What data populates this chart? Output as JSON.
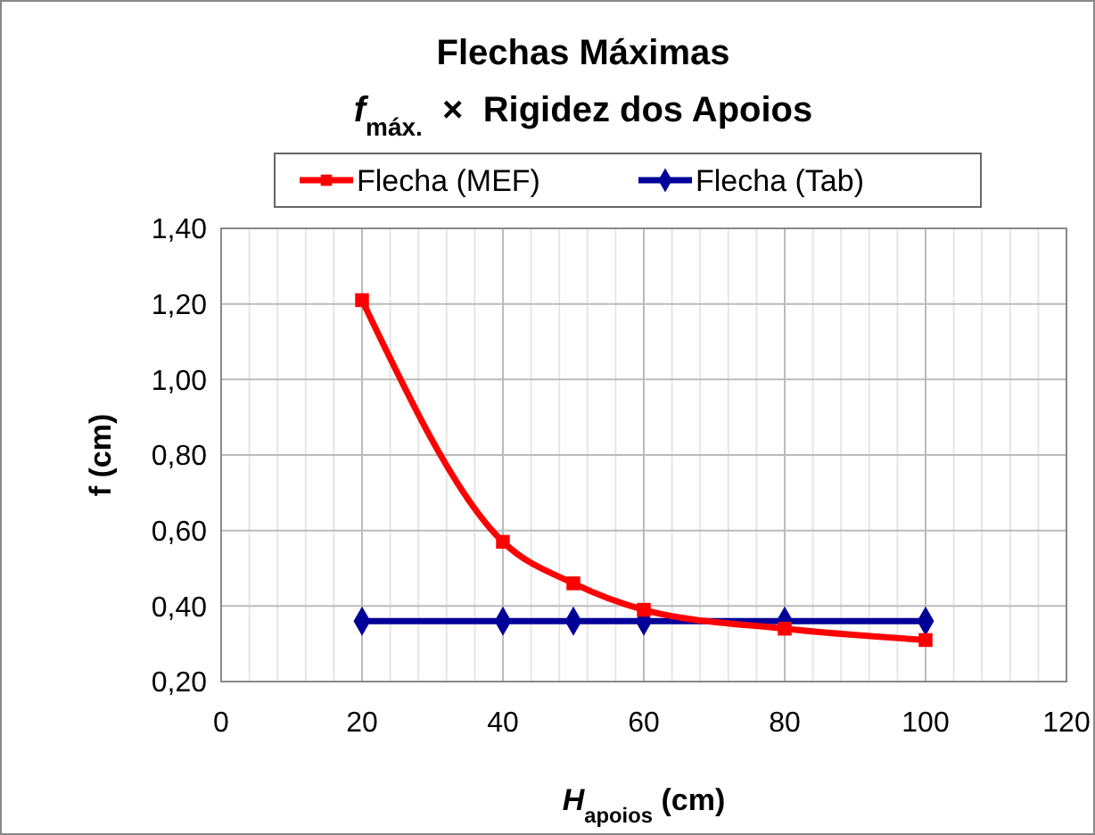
{
  "chart_data": {
    "type": "line",
    "title": "Flechas Máximas",
    "subtitle": "f$_{máx.}$  ×  Rigidez dos Apoios",
    "xlabel": "H$_{apoios}$ (cm)",
    "ylabel": "f (cm)",
    "series": [
      {
        "name": "Flecha (MEF)",
        "color": "#ff0000",
        "marker": "square",
        "x": [
          20,
          40,
          50,
          60,
          80,
          100
        ],
        "values": [
          1.21,
          0.57,
          0.46,
          0.39,
          0.34,
          0.31
        ]
      },
      {
        "name": "Flecha (Tab)",
        "color": "#000099",
        "marker": "diamond",
        "x": [
          20,
          40,
          50,
          60,
          80,
          100
        ],
        "values": [
          0.36,
          0.36,
          0.36,
          0.36,
          0.36,
          0.36
        ]
      }
    ],
    "xlim": [
      0,
      120
    ],
    "xticks": [
      0,
      {
        "value": 4,
        "label": null
      },
      {
        "value": 8,
        "label": null
      },
      {
        "value": 12,
        "label": null
      },
      {
        "value": 16,
        "label": null
      },
      20,
      {
        "value": 24,
        "label": null
      },
      {
        "value": 28,
        "label": null
      },
      {
        "value": 32,
        "label": null
      },
      {
        "value": 36,
        "label": null
      },
      40,
      {
        "value": 44,
        "label": null
      },
      {
        "value": 48,
        "label": null
      },
      {
        "value": 52,
        "label": null
      },
      {
        "value": 56,
        "label": null
      },
      60,
      {
        "value": 64,
        "label": null
      },
      {
        "value": 68,
        "label": null
      },
      {
        "value": 72,
        "label": null
      },
      {
        "value": 76,
        "label": null
      },
      80,
      {
        "value": 84,
        "label": null
      },
      {
        "value": 88,
        "label": null
      },
      {
        "value": 92,
        "label": null
      },
      {
        "value": 96,
        "label": null
      },
      100,
      {
        "value": 104,
        "label": null
      },
      {
        "value": 108,
        "label": null
      },
      {
        "value": 112,
        "label": null
      },
      {
        "value": 116,
        "label": null
      },
      120
    ],
    "ylim": [
      0.2,
      1.4
    ],
    "yticks": [
      {
        "value": 0.2,
        "label": "0,20"
      },
      {
        "value": 0.4,
        "label": "0,40"
      },
      {
        "value": 0.6,
        "label": "0,60"
      },
      {
        "value": 0.8,
        "label": "0,80"
      },
      {
        "value": 1.0,
        "label": "1,00"
      },
      {
        "value": 1.2,
        "label": "1,20"
      },
      {
        "value": 1.4,
        "label": "1,40"
      }
    ],
    "grid": true,
    "legend": "top",
    "line_style": "solid"
  }
}
